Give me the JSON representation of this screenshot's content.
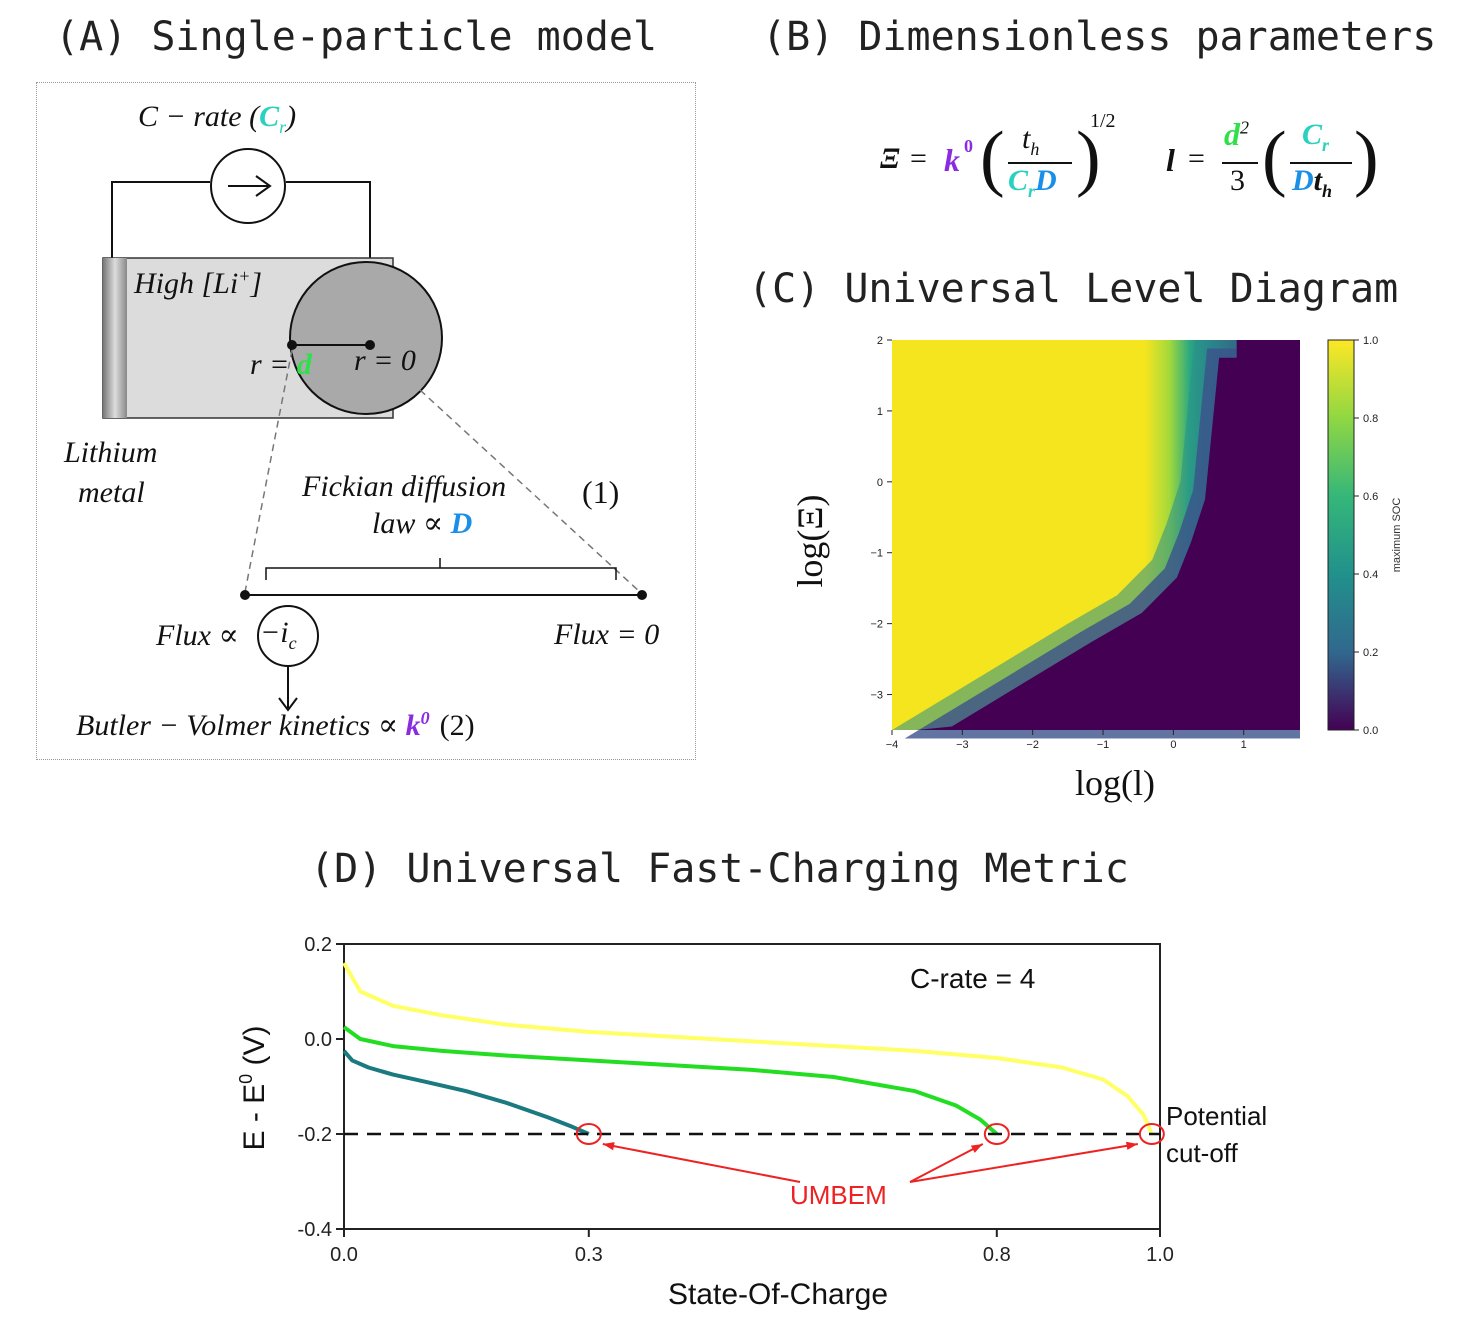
{
  "panel_a": {
    "title": "(A) Single-particle model",
    "c_rate_label": "C − rate (",
    "c_rate_symbol": "C",
    "c_rate_sub": "r",
    "c_rate_close": ")",
    "high_li": "High [Li",
    "high_li_sup": "+",
    "high_li_close": "]",
    "r_eq_d_left": "r = ",
    "r_eq_d_sym": "d",
    "r_eq_0": "r = 0",
    "lithium_metal_1": "Lithium",
    "lithium_metal_2": "metal",
    "fickian_1": "Fickian diffusion",
    "fickian_num": "(1)",
    "fickian_2": "law  ∝ ",
    "fickian_sym": "D",
    "flux_left": "Flux ∝",
    "flux_circle": "−i",
    "flux_circle_sub": "c",
    "flux_right": "Flux = 0",
    "butler": "Butler − Volmer kinetics ∝ ",
    "butler_sym": "k",
    "butler_sup": "0",
    "butler_num": "(2)"
  },
  "panel_b": {
    "title": "(B) Dimensionless parameters",
    "xi_symbol": "Ξ",
    "eq1_eq": "=",
    "k_sym": "k",
    "k_sup": "0",
    "th_num": "t",
    "th_sub": "h",
    "crd_c": "C",
    "crd_r": "r",
    "crd_d": "D",
    "power": "1/2",
    "l_sym": "l",
    "eq2_eq": "=",
    "d_sym": "d",
    "d_sup": "2",
    "three": "3",
    "cr_c": "C",
    "cr_r": "r",
    "dt_d": "D",
    "dt_t": "t",
    "dt_h": "h"
  },
  "panel_c": {
    "title": "(C) Universal Level Diagram",
    "ylabel": "log(Ξ)",
    "xlabel": "log(l)",
    "colorbar_label": "maximum SOC",
    "colorbar_ticks": [
      "1.0",
      "0.8",
      "0.6",
      "0.4",
      "0.2",
      "0.0"
    ],
    "colorbar_tick_values": [
      1.0,
      0.8,
      0.6,
      0.4,
      0.2,
      0.0
    ],
    "x_ticks": [
      "−4",
      "−3",
      "−2",
      "−1",
      "0",
      "1"
    ],
    "x_tick_values": [
      -4,
      -3,
      -2,
      -1,
      0,
      1
    ],
    "y_ticks": [
      "2",
      "1",
      "0",
      "−1",
      "−2",
      "−3"
    ],
    "y_tick_values": [
      2,
      1,
      0,
      -1,
      -2,
      -3
    ],
    "xlim": [
      -4.0,
      1.8
    ],
    "ylim": [
      -3.5,
      2.0
    ],
    "colors": {
      "high": "#f5e51f",
      "mid": "#22a884",
      "low": "#440154"
    }
  },
  "panel_d": {
    "title": "(D) Universal Fast-Charging Metric",
    "chart_data": {
      "type": "line",
      "xlabel": "State-Of-Charge",
      "ylabel": "E - E0 (V)",
      "ylabel_main": "E - E",
      "ylabel_sup": "0",
      "ylabel_unit": " (V)",
      "xlim": [
        0.0,
        1.0
      ],
      "ylim": [
        -0.4,
        0.2
      ],
      "x_ticks": [
        "0.0",
        "0.3",
        "0.8",
        "1.0"
      ],
      "x_tick_values": [
        0.0,
        0.3,
        0.8,
        1.0
      ],
      "y_ticks": [
        "0.2",
        "0.0",
        "-0.2",
        "-0.4"
      ],
      "y_tick_values": [
        0.2,
        0.0,
        -0.2,
        -0.4
      ],
      "annotation_crate": "C-rate = 4",
      "cutoff_label_1": "Potential",
      "cutoff_label_2": "cut-off",
      "cutoff_value": -0.2,
      "umbem_label": "UMBEM",
      "umbem_points": [
        0.3,
        0.8,
        0.99
      ],
      "series": [
        {
          "color": "#ffff66",
          "x": [
            0.0,
            0.02,
            0.06,
            0.12,
            0.2,
            0.3,
            0.4,
            0.5,
            0.6,
            0.7,
            0.8,
            0.88,
            0.93,
            0.96,
            0.98,
            0.99
          ],
          "y": [
            0.16,
            0.1,
            0.07,
            0.05,
            0.03,
            0.015,
            0.005,
            -0.005,
            -0.015,
            -0.025,
            -0.04,
            -0.06,
            -0.085,
            -0.12,
            -0.16,
            -0.2
          ]
        },
        {
          "color": "#22dd22",
          "x": [
            0.0,
            0.02,
            0.06,
            0.12,
            0.2,
            0.3,
            0.4,
            0.5,
            0.6,
            0.7,
            0.75,
            0.78,
            0.8
          ],
          "y": [
            0.025,
            0.0,
            -0.015,
            -0.025,
            -0.035,
            -0.045,
            -0.055,
            -0.065,
            -0.08,
            -0.11,
            -0.14,
            -0.17,
            -0.2
          ]
        },
        {
          "color": "#1a7a80",
          "x": [
            0.0,
            0.01,
            0.03,
            0.06,
            0.1,
            0.15,
            0.2,
            0.25,
            0.28,
            0.3
          ],
          "y": [
            -0.025,
            -0.045,
            -0.06,
            -0.075,
            -0.09,
            -0.11,
            -0.135,
            -0.165,
            -0.185,
            -0.2
          ]
        }
      ]
    }
  }
}
